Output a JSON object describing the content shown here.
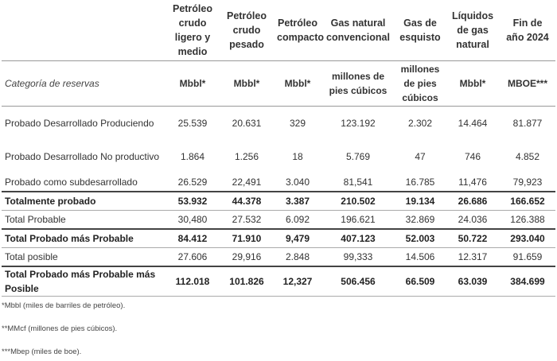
{
  "headers": [
    "Petróleo crudo ligero y medio",
    "Petróleo crudo pesado",
    "Petróleo compacto",
    "Gas natural convencional",
    "Gas de esquisto",
    "Líquidos de gas natural",
    "Fin de año 2024"
  ],
  "category_label": "Categoría de reservas",
  "units": [
    "Mbbl*",
    "Mbbl*",
    "Mbbl*",
    "millones de pies cúbicos",
    "millones de pies cúbicos",
    "Mbbl*",
    "MBOE***"
  ],
  "rows": [
    {
      "label": "Probado Desarrollado Produciendo",
      "values": [
        "25.539",
        "20.631",
        "329",
        "123.192",
        "2.302",
        "14.464",
        "81.877"
      ]
    },
    {
      "label": "Probado Desarrollado No productivo",
      "values": [
        "1.864",
        "1.256",
        "18",
        "5.769",
        "47",
        "746",
        "4.852"
      ]
    },
    {
      "label": "Probado como subdesarrollado",
      "values": [
        "26.529",
        "22,491",
        "3.040",
        "81,541",
        "16.785",
        "11,476",
        "79,923"
      ]
    },
    {
      "label": "Totalmente probado",
      "values": [
        "53.932",
        "44.378",
        "3.387",
        "210.502",
        "19.134",
        "26.686",
        "166.652"
      ]
    },
    {
      "label": "Total Probable",
      "values": [
        "30,480",
        "27.532",
        "6.092",
        "196.621",
        "32.869",
        "24.036",
        "126.388"
      ]
    },
    {
      "label": "Total Probado más Probable",
      "values": [
        "84.412",
        "71.910",
        "9,479",
        "407.123",
        "52.003",
        "50.722",
        "293.040"
      ]
    },
    {
      "label": "Total posible",
      "values": [
        "27.606",
        "29,916",
        "2.848",
        "99,333",
        "14.506",
        "12.317",
        "91.659"
      ]
    },
    {
      "label": "Total Probado más Probable más Posible",
      "values": [
        "112.018",
        "101.826",
        "12,327",
        "506.456",
        "66.509",
        "63.039",
        "384.699"
      ]
    }
  ],
  "footnotes": [
    "*Mbbl (miles de barriles de petróleo).",
    "**MMcf (millones de pies cúbicos).",
    "***Mbep (miles de boe)."
  ]
}
